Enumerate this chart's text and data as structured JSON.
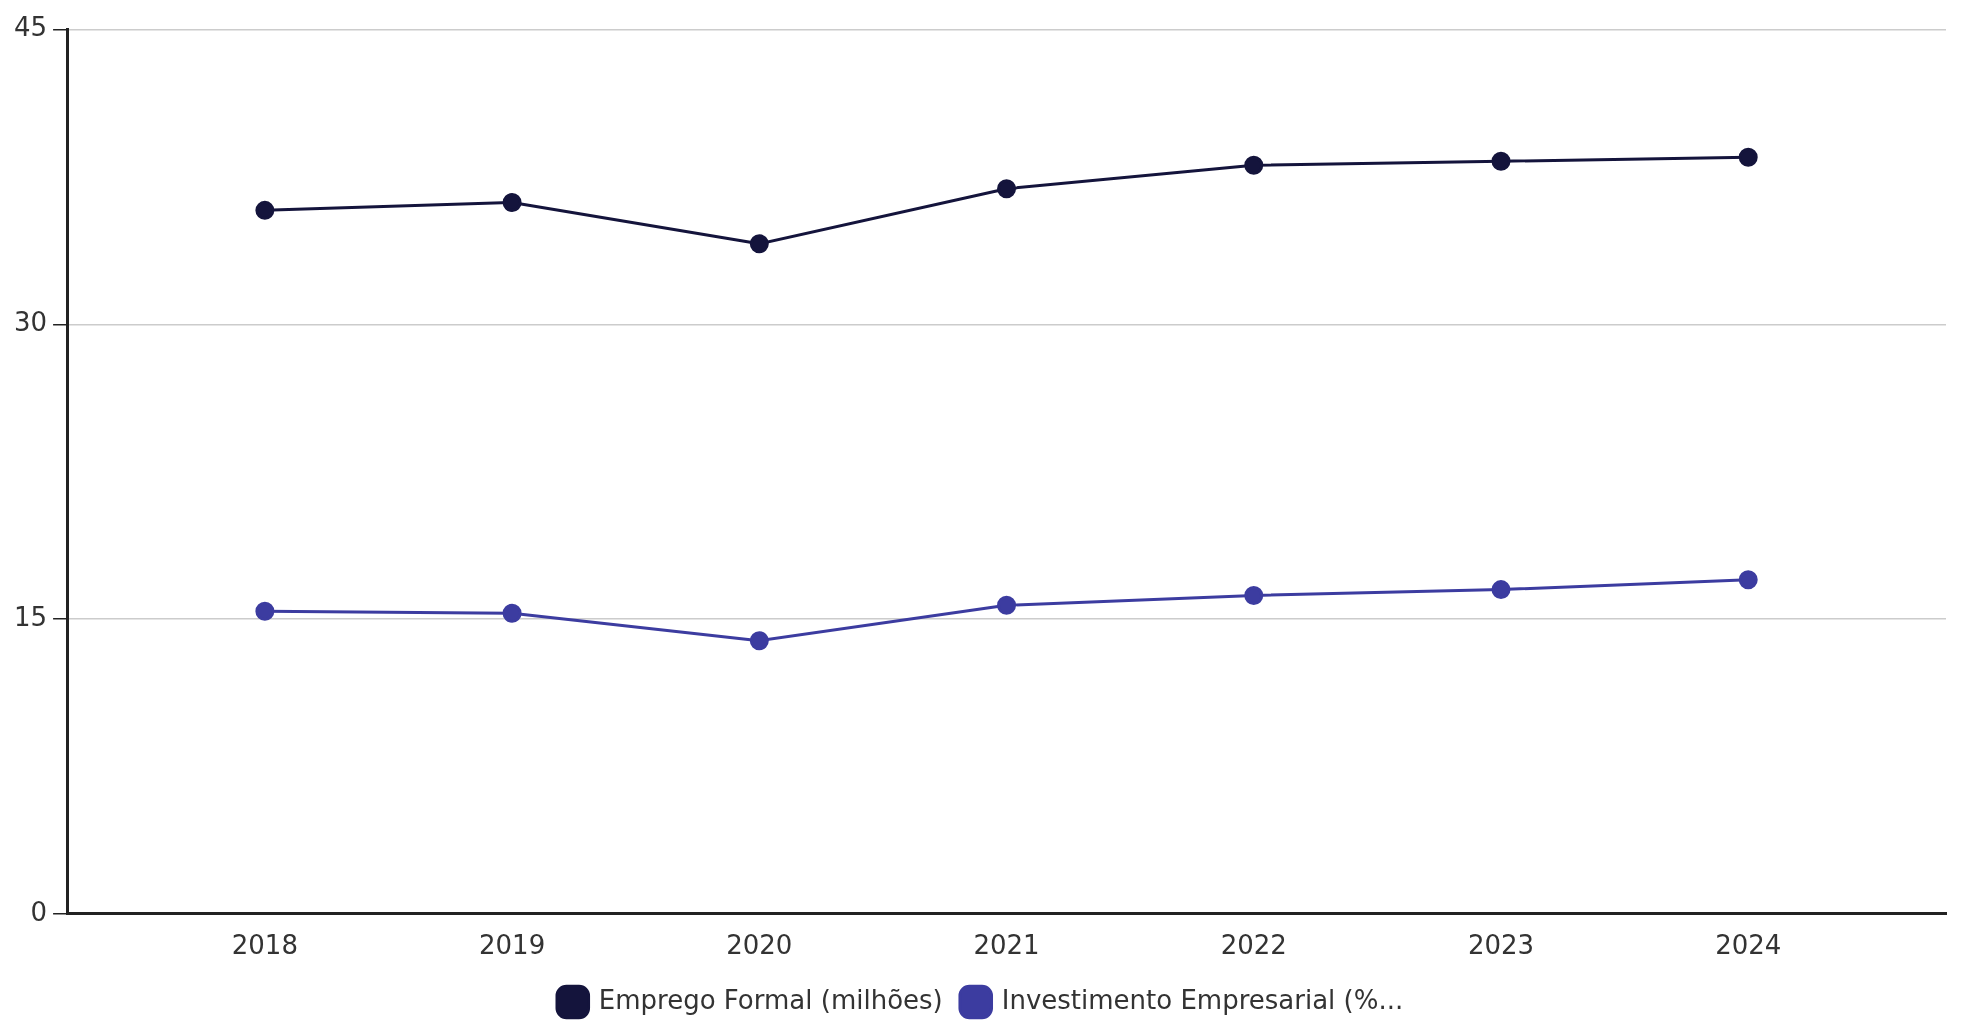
{
  "chart_data": {
    "type": "line",
    "categories": [
      "2018",
      "2019",
      "2020",
      "2021",
      "2022",
      "2023",
      "2024"
    ],
    "series": [
      {
        "name": "Emprego Formal (milhões)",
        "color": "#14143c",
        "values": [
          35.8,
          36.2,
          34.1,
          36.9,
          38.1,
          38.3,
          38.5
        ]
      },
      {
        "name": "Investimento Empresarial (%...",
        "color": "#3c3ca0",
        "values": [
          15.4,
          15.3,
          13.9,
          15.7,
          16.2,
          16.5,
          17.0
        ]
      }
    ],
    "ylim": [
      0,
      45
    ],
    "yticks": [
      0,
      15,
      30,
      45
    ],
    "grid": "y",
    "legend": "bottom",
    "marker": "circle",
    "line_style": "solid"
  }
}
